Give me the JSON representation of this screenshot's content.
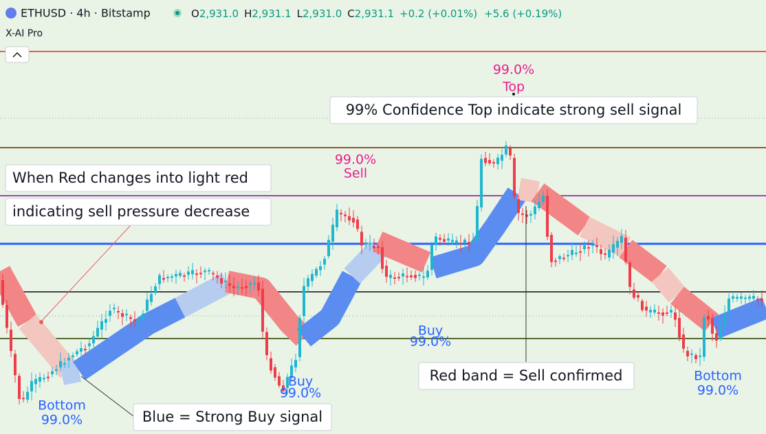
{
  "header": {
    "symbol": "ETHUSD · 4h · Bitstamp",
    "ohlc": [
      {
        "key": "O",
        "value": "2,931.0"
      },
      {
        "key": "H",
        "value": "2,931.1"
      },
      {
        "key": "L",
        "value": "2,931.0"
      },
      {
        "key": "C",
        "value": "2,931.1"
      }
    ],
    "change": "+0.2 (+0.01%)",
    "change_total": "+5.6 (+0.19%)",
    "indicator": "X-AI Pro"
  },
  "signals": [
    {
      "confidence": "99.0%",
      "label": "Top"
    },
    {
      "confidence": "99.0%",
      "label": "Sell"
    },
    {
      "label": "Buy",
      "confidence": "99.0%"
    },
    {
      "label": "Buy",
      "confidence": "99.0%"
    },
    {
      "label": "Bottom",
      "confidence": "99.0%"
    },
    {
      "label": "Bottom",
      "confidence": "99.0%"
    }
  ],
  "callouts": [
    {
      "lines": [
        "99% Confidence Top indicate strong sell signal"
      ]
    },
    {
      "lines": [
        "When Red changes into light red",
        "indicating sell pressure decrease"
      ]
    },
    {
      "lines": [
        "Red band = Sell confirmed"
      ]
    },
    {
      "lines": [
        "Blue = Strong Buy signal"
      ]
    }
  ]
}
